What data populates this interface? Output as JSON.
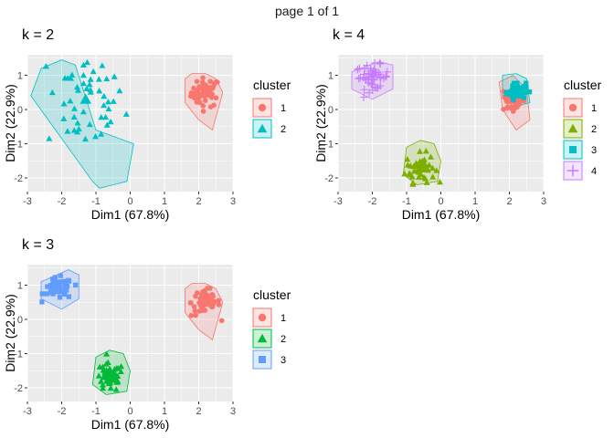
{
  "page_title": "page 1 of 1",
  "colors": {
    "panel_bg": "#EBEBEB",
    "grid": "#FFFFFF",
    "k2": [
      "#F8766D",
      "#00BFC4"
    ],
    "k3": [
      "#F8766D",
      "#00BA38",
      "#619CFF"
    ],
    "k4": [
      "#F8766D",
      "#7CAE00",
      "#00BFC4",
      "#C77CFF"
    ]
  },
  "chart_data": [
    {
      "id": "k2",
      "type": "scatter",
      "title": "k = 2",
      "xlabel": "Dim1 (67.8%)",
      "ylabel": "Dim2 (22.9%)",
      "xlim": [
        -3,
        3
      ],
      "ylim": [
        -2.4,
        1.6
      ],
      "xticks": [
        -3,
        -2,
        -1,
        0,
        1,
        2,
        3
      ],
      "yticks": [
        -2,
        -1,
        0,
        1
      ],
      "grid": true,
      "legend": {
        "title": "cluster",
        "position": "right",
        "entries": [
          "1",
          "2"
        ]
      },
      "series": [
        {
          "name": "1",
          "shape": "circle",
          "center": [
            2.2,
            0.5
          ],
          "spread": [
            0.3,
            0.3
          ],
          "hull": [
            [
              1.6,
              0.9
            ],
            [
              1.8,
              1.05
            ],
            [
              2.2,
              1.05
            ],
            [
              2.5,
              0.9
            ],
            [
              2.7,
              0.5
            ],
            [
              2.4,
              -0.6
            ],
            [
              2.0,
              -0.3
            ],
            [
              1.6,
              0.2
            ]
          ]
        },
        {
          "name": "2",
          "shape": "triangle",
          "center": [
            -1.3,
            0.3
          ],
          "spread": [
            0.8,
            1.1
          ],
          "hull": [
            [
              -2.6,
              1.2
            ],
            [
              -2.0,
              1.45
            ],
            [
              -1.6,
              1.3
            ],
            [
              -1.0,
              -0.6
            ],
            [
              0.1,
              -1.0
            ],
            [
              -0.1,
              -2.1
            ],
            [
              -0.9,
              -2.3
            ],
            [
              -1.1,
              -2.1
            ],
            [
              -2.9,
              0.4
            ]
          ]
        }
      ]
    },
    {
      "id": "k4",
      "type": "scatter",
      "title": "k = 4",
      "xlabel": "Dim1 (67.8%)",
      "ylabel": "Dim2 (22.9%)",
      "xlim": [
        -3,
        3
      ],
      "ylim": [
        -2.4,
        1.6
      ],
      "xticks": [
        -3,
        -2,
        -1,
        0,
        1,
        2,
        3
      ],
      "yticks": [
        -2,
        -1,
        0,
        1
      ],
      "grid": true,
      "legend": {
        "title": "cluster",
        "position": "right",
        "entries": [
          "1",
          "2",
          "3",
          "4"
        ]
      },
      "series": [
        {
          "name": "1",
          "shape": "circle",
          "center": [
            2.1,
            0.3
          ],
          "spread": [
            0.25,
            0.3
          ],
          "hull": [
            [
              1.7,
              0.8
            ],
            [
              2.1,
              1.0
            ],
            [
              2.5,
              0.6
            ],
            [
              2.6,
              -0.3
            ],
            [
              2.2,
              -0.6
            ],
            [
              1.8,
              0.0
            ]
          ]
        },
        {
          "name": "2",
          "shape": "triangle",
          "center": [
            -0.6,
            -1.7
          ],
          "spread": [
            0.3,
            0.3
          ],
          "hull": [
            [
              -1.0,
              -1.1
            ],
            [
              -0.6,
              -0.9
            ],
            [
              -0.2,
              -1.0
            ],
            [
              0.0,
              -1.5
            ],
            [
              -0.1,
              -2.1
            ],
            [
              -0.7,
              -2.2
            ],
            [
              -1.1,
              -1.9
            ]
          ]
        },
        {
          "name": "3",
          "shape": "square",
          "center": [
            2.2,
            0.55
          ],
          "spread": [
            0.2,
            0.18
          ],
          "hull": [
            [
              1.8,
              1.0
            ],
            [
              2.2,
              1.05
            ],
            [
              2.5,
              0.9
            ],
            [
              2.6,
              0.2
            ],
            [
              2.2,
              0.1
            ],
            [
              1.8,
              0.4
            ]
          ]
        },
        {
          "name": "4",
          "shape": "plus",
          "center": [
            -2.0,
            0.95
          ],
          "spread": [
            0.35,
            0.25
          ],
          "hull": [
            [
              -2.6,
              1.1
            ],
            [
              -1.8,
              1.4
            ],
            [
              -1.4,
              1.3
            ],
            [
              -1.4,
              0.6
            ],
            [
              -2.0,
              0.3
            ],
            [
              -2.6,
              0.6
            ]
          ]
        }
      ]
    },
    {
      "id": "k3",
      "type": "scatter",
      "title": "k = 3",
      "xlabel": "Dim1 (67.8%)",
      "ylabel": "Dim2 (22.9%)",
      "xlim": [
        -3,
        3
      ],
      "ylim": [
        -2.4,
        1.6
      ],
      "xticks": [
        -3,
        -2,
        -1,
        0,
        1,
        2,
        3
      ],
      "yticks": [
        -2,
        -1,
        0,
        1
      ],
      "grid": true,
      "legend": {
        "title": "cluster",
        "position": "right",
        "entries": [
          "1",
          "2",
          "3"
        ]
      },
      "series": [
        {
          "name": "1",
          "shape": "circle",
          "center": [
            2.2,
            0.5
          ],
          "spread": [
            0.3,
            0.3
          ],
          "hull": [
            [
              1.6,
              0.9
            ],
            [
              1.8,
              1.05
            ],
            [
              2.2,
              1.05
            ],
            [
              2.5,
              0.9
            ],
            [
              2.7,
              0.5
            ],
            [
              2.4,
              -0.6
            ],
            [
              2.0,
              -0.3
            ],
            [
              1.6,
              0.2
            ]
          ]
        },
        {
          "name": "2",
          "shape": "triangle",
          "center": [
            -0.6,
            -1.7
          ],
          "spread": [
            0.3,
            0.3
          ],
          "hull": [
            [
              -1.0,
              -1.1
            ],
            [
              -0.6,
              -0.9
            ],
            [
              -0.2,
              -1.0
            ],
            [
              0.0,
              -1.5
            ],
            [
              -0.1,
              -2.1
            ],
            [
              -0.7,
              -2.2
            ],
            [
              -1.1,
              -1.9
            ]
          ]
        },
        {
          "name": "3",
          "shape": "square",
          "center": [
            -2.1,
            0.9
          ],
          "spread": [
            0.3,
            0.22
          ],
          "hull": [
            [
              -2.6,
              1.1
            ],
            [
              -1.8,
              1.45
            ],
            [
              -1.5,
              1.3
            ],
            [
              -1.5,
              0.6
            ],
            [
              -2.0,
              0.3
            ],
            [
              -2.6,
              0.6
            ]
          ]
        }
      ]
    }
  ]
}
